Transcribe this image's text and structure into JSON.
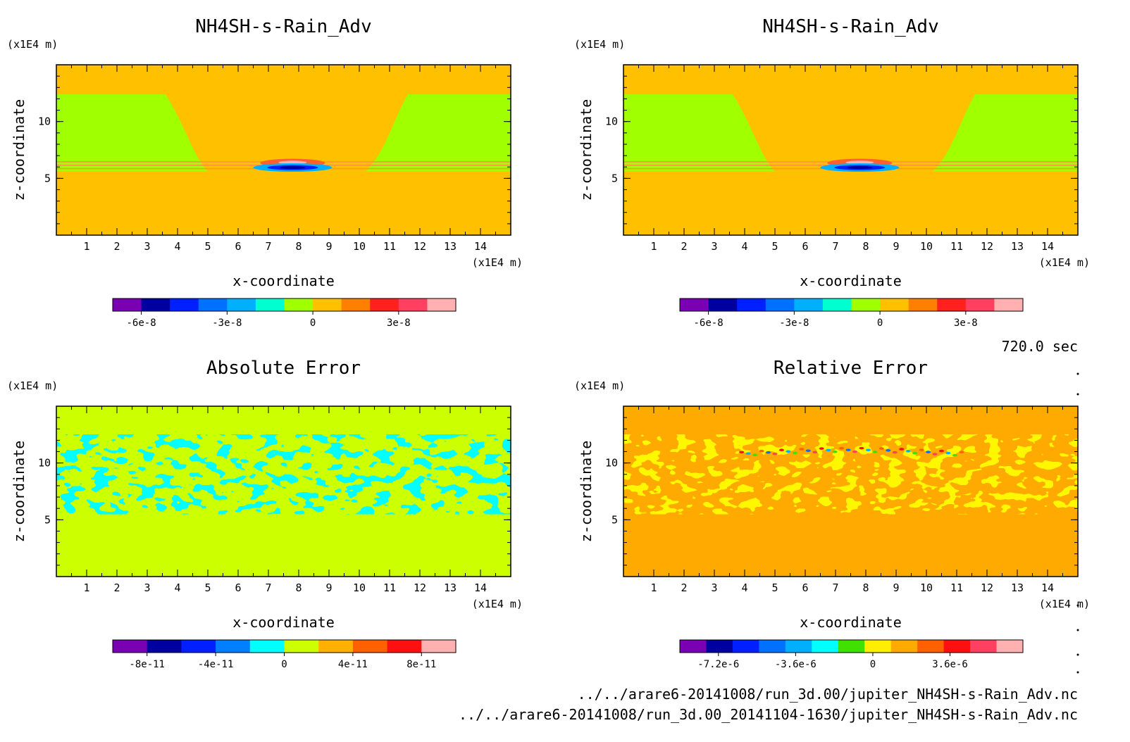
{
  "figure": {
    "time_label": "720.0 sec",
    "file_lines": [
      "../../arare6-20141008/run_3d.00/jupiter_NH4SH-s-Rain_Adv.nc",
      "../../arare6-20141008/run_3d.00_20141104-1630/jupiter_NH4SH-s-Rain_Adv.nc"
    ]
  },
  "chart_data": [
    {
      "type": "heatmap",
      "title": "NH4SH-s-Rain_Adv",
      "xlabel": "x-coordinate",
      "ylabel": "z-coordinate",
      "x_unit": "(x1E4 m)",
      "y_unit": "(x1E4 m)",
      "xlim": [
        0,
        15
      ],
      "ylim": [
        0,
        15
      ],
      "x_ticks": [
        "1",
        "2",
        "3",
        "4",
        "5",
        "6",
        "7",
        "8",
        "9",
        "10",
        "11",
        "12",
        "13",
        "14"
      ],
      "y_ticks": [
        "5",
        "10"
      ],
      "background_color": "#ffc000",
      "colorbar": {
        "colors": [
          "#7a00b4",
          "#0000a0",
          "#0020ff",
          "#0070ff",
          "#00b0ff",
          "#00ffd0",
          "#a0ff00",
          "#ffc000",
          "#ff8000",
          "#ff2020",
          "#ff4060",
          "#ffb0b0"
        ],
        "tick_labels": [
          "-6e-8",
          "-3e-8",
          "0",
          "3e-8"
        ],
        "tick_values": [
          -6e-08,
          -3e-08,
          0,
          3e-08
        ],
        "vmin": -7e-08,
        "vmax": 5e-08
      }
    },
    {
      "type": "heatmap",
      "title": "NH4SH-s-Rain_Adv",
      "xlabel": "x-coordinate",
      "ylabel": "z-coordinate",
      "x_unit": "(x1E4 m)",
      "y_unit": "(x1E4 m)",
      "xlim": [
        0,
        15
      ],
      "ylim": [
        0,
        15
      ],
      "x_ticks": [
        "1",
        "2",
        "3",
        "4",
        "5",
        "6",
        "7",
        "8",
        "9",
        "10",
        "11",
        "12",
        "13",
        "14"
      ],
      "y_ticks": [
        "5",
        "10"
      ],
      "background_color": "#ffc000",
      "colorbar": {
        "colors": [
          "#7a00b4",
          "#0000a0",
          "#0020ff",
          "#0070ff",
          "#00b0ff",
          "#00ffd0",
          "#a0ff00",
          "#ffc000",
          "#ff8000",
          "#ff2020",
          "#ff4060",
          "#ffb0b0"
        ],
        "tick_labels": [
          "-6e-8",
          "-3e-8",
          "0",
          "3e-8"
        ],
        "tick_values": [
          -6e-08,
          -3e-08,
          0,
          3e-08
        ],
        "vmin": -7e-08,
        "vmax": 5e-08
      }
    },
    {
      "type": "heatmap",
      "title": "Absolute Error",
      "xlabel": "x-coordinate",
      "ylabel": "z-coordinate",
      "x_unit": "(x1E4 m)",
      "y_unit": "(x1E4 m)",
      "xlim": [
        0,
        15
      ],
      "ylim": [
        0,
        15
      ],
      "x_ticks": [
        "1",
        "2",
        "3",
        "4",
        "5",
        "6",
        "7",
        "8",
        "9",
        "10",
        "11",
        "12",
        "13",
        "14"
      ],
      "y_ticks": [
        "5",
        "10"
      ],
      "background_color": "#ccff00",
      "colorbar": {
        "colors": [
          "#7a00b4",
          "#0000a0",
          "#0020ff",
          "#0080ff",
          "#00ffff",
          "#ccff00",
          "#ffb000",
          "#ff6000",
          "#ff1010",
          "#ffb0b0"
        ],
        "tick_labels": [
          "-8e-11",
          "-4e-11",
          "0",
          "4e-11",
          "8e-11"
        ],
        "tick_values": [
          -8e-11,
          -4e-11,
          0,
          4e-11,
          8e-11
        ],
        "vmin": -1e-10,
        "vmax": 1e-10
      }
    },
    {
      "type": "heatmap",
      "title": "Relative Error",
      "xlabel": "x-coordinate",
      "ylabel": "z-coordinate",
      "x_unit": "(x1E4 m)",
      "y_unit": "(x1E4 m)",
      "xlim": [
        0,
        15
      ],
      "ylim": [
        0,
        15
      ],
      "x_ticks": [
        "1",
        "2",
        "3",
        "4",
        "5",
        "6",
        "7",
        "8",
        "9",
        "10",
        "11",
        "12",
        "13",
        "14"
      ],
      "y_ticks": [
        "5",
        "10"
      ],
      "background_color": "#ffaa00",
      "colorbar": {
        "colors": [
          "#7a00b4",
          "#0000a0",
          "#0020ff",
          "#0070ff",
          "#00b0ff",
          "#00ffff",
          "#40e000",
          "#ffee00",
          "#ffaa00",
          "#ff6000",
          "#ff1010",
          "#ff4060",
          "#ffb0b0"
        ],
        "tick_labels": [
          "-7.2e-6",
          "-3.6e-6",
          "0",
          "3.6e-6"
        ],
        "tick_values": [
          -7.2e-06,
          -3.6e-06,
          0,
          3.6e-06
        ],
        "vmin": -9e-06,
        "vmax": 7e-06
      }
    }
  ]
}
